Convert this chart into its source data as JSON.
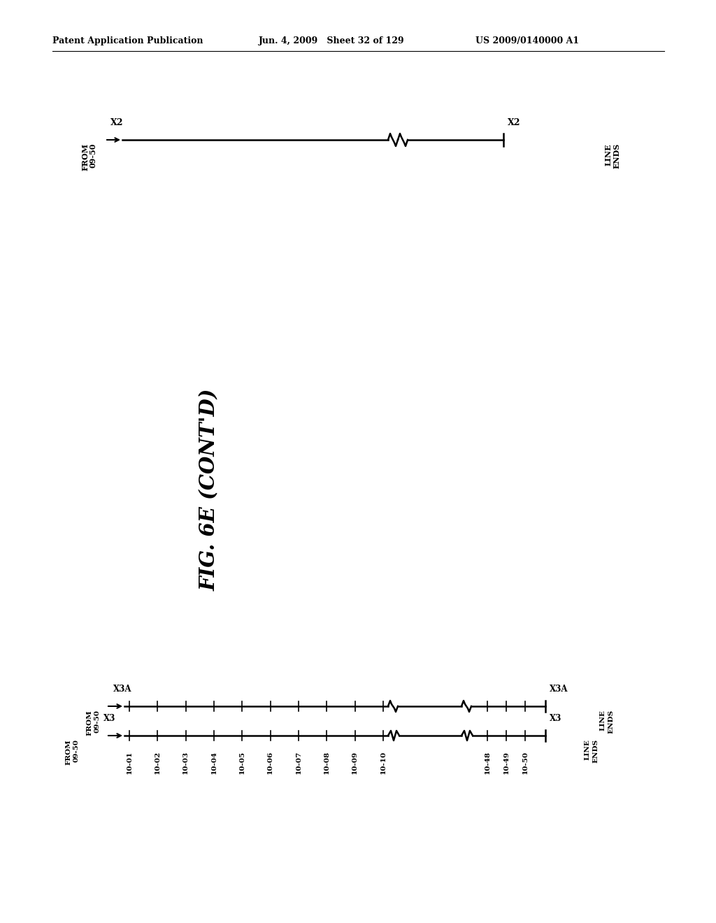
{
  "bg_color": "#ffffff",
  "header_left": "Patent Application Publication",
  "header_mid": "Jun. 4, 2009   Sheet 32 of 129",
  "header_right": "US 2009/0140000 A1",
  "fig_label": "FIG. 6E (CONT'D)",
  "line1_label": "X2",
  "line2a_label": "X3A",
  "line2b_label": "X3",
  "bottom_ticks_left": [
    "10-01",
    "10-02",
    "10-03",
    "10-04",
    "10-05",
    "10-06",
    "10-07",
    "10-08",
    "10-09",
    "10-10"
  ],
  "bottom_ticks_right": [
    "10-48",
    "10-49",
    "10-50"
  ]
}
